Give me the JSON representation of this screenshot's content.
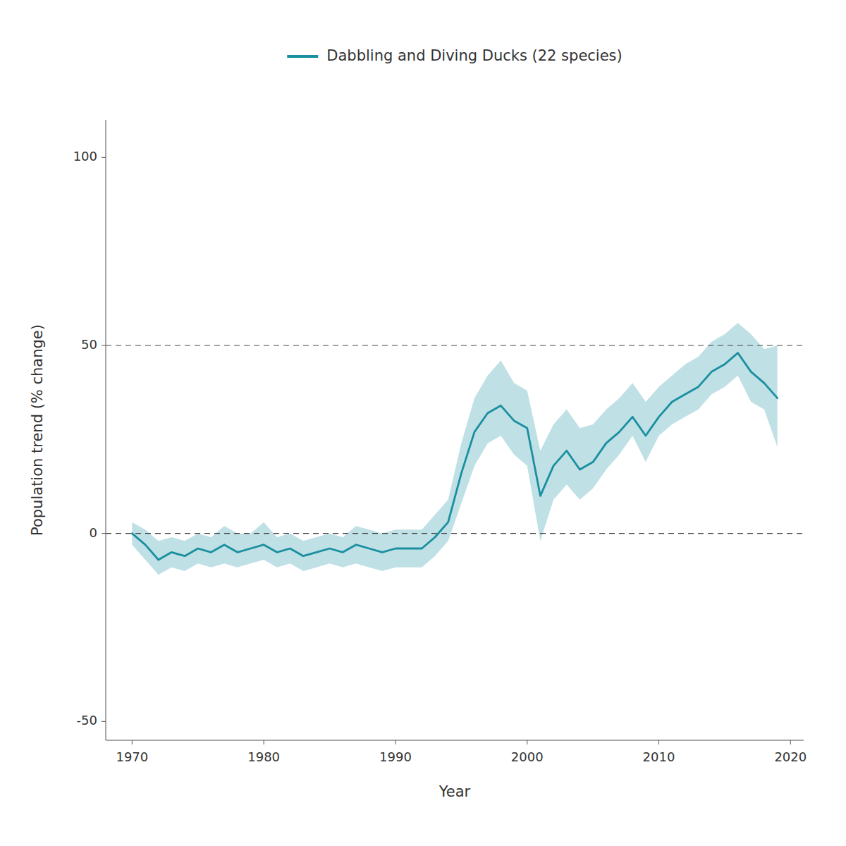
{
  "chart_data": {
    "type": "line",
    "xlabel": "Year",
    "ylabel": "Population trend (% change)",
    "legend": "top",
    "grid": false,
    "xlim": [
      1968,
      2021
    ],
    "ylim": [
      -55,
      110
    ],
    "xticks": [
      1970,
      1980,
      1990,
      2000,
      2010,
      2020
    ],
    "yticks": [
      -50,
      0,
      50,
      100
    ],
    "reference_lines": [
      0,
      50
    ],
    "x": [
      1970,
      1971,
      1972,
      1973,
      1974,
      1975,
      1976,
      1977,
      1978,
      1979,
      1980,
      1981,
      1982,
      1983,
      1984,
      1985,
      1986,
      1987,
      1988,
      1989,
      1990,
      1991,
      1992,
      1993,
      1994,
      1995,
      1996,
      1997,
      1998,
      1999,
      2000,
      2001,
      2002,
      2003,
      2004,
      2005,
      2006,
      2007,
      2008,
      2009,
      2010,
      2011,
      2012,
      2013,
      2014,
      2015,
      2016,
      2017,
      2018,
      2019
    ],
    "series": [
      {
        "name": "Dabbling and Diving Ducks (22 species)",
        "color": "#1a8fa0",
        "values": [
          0,
          -3,
          -7,
          -5,
          -6,
          -4,
          -5,
          -3,
          -5,
          -4,
          -3,
          -5,
          -4,
          -6,
          -5,
          -4,
          -5,
          -3,
          -4,
          -5,
          -4,
          -4,
          -4,
          -1,
          3,
          16,
          27,
          32,
          34,
          30,
          28,
          10,
          18,
          22,
          17,
          19,
          24,
          27,
          31,
          26,
          31,
          35,
          37,
          39,
          43,
          45,
          48,
          43,
          40,
          36
        ],
        "lower": [
          -3,
          -7,
          -11,
          -9,
          -10,
          -8,
          -9,
          -8,
          -9,
          -8,
          -7,
          -9,
          -8,
          -10,
          -9,
          -8,
          -9,
          -8,
          -9,
          -10,
          -9,
          -9,
          -9,
          -6,
          -2,
          8,
          18,
          24,
          26,
          21,
          18,
          -2,
          9,
          13,
          9,
          12,
          17,
          21,
          26,
          19,
          26,
          29,
          31,
          33,
          37,
          39,
          42,
          35,
          33,
          23
        ],
        "upper": [
          3,
          1,
          -2,
          -1,
          -2,
          0,
          -1,
          2,
          0,
          0,
          3,
          -1,
          0,
          -2,
          -1,
          0,
          -1,
          2,
          1,
          0,
          1,
          1,
          1,
          5,
          9,
          24,
          36,
          42,
          46,
          40,
          38,
          22,
          29,
          33,
          28,
          29,
          33,
          36,
          40,
          35,
          39,
          42,
          45,
          47,
          51,
          53,
          56,
          53,
          49,
          50
        ]
      }
    ]
  }
}
